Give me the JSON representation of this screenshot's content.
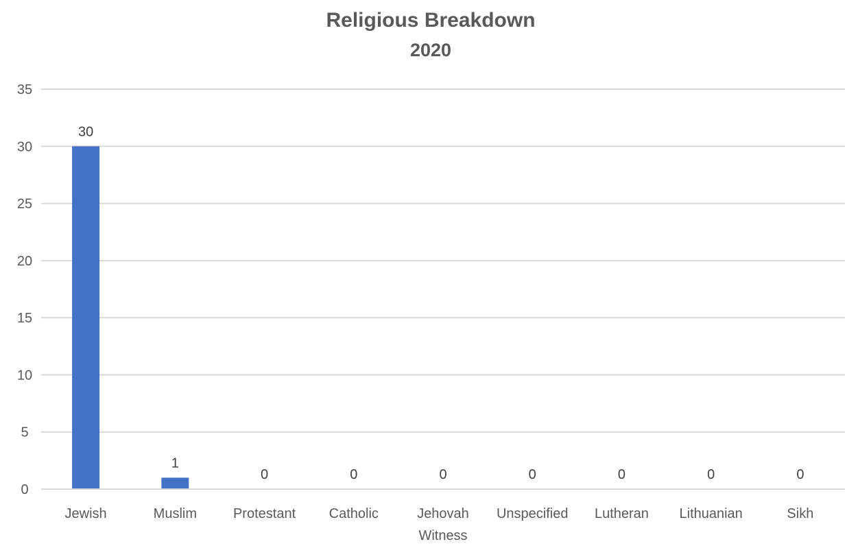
{
  "chart_data": {
    "type": "bar",
    "title": "Religious Breakdown",
    "subtitle": "2020",
    "xlabel": "",
    "ylabel": "",
    "categories": [
      "Jewish",
      "Muslim",
      "Protestant",
      "Catholic",
      "Jehovah Witness",
      "Unspecified",
      "Lutheran",
      "Lithuanian",
      "Sikh"
    ],
    "values": [
      30,
      1,
      0,
      0,
      0,
      0,
      0,
      0,
      0
    ],
    "data_labels": [
      "30",
      "1",
      "0",
      "0",
      "0",
      "0",
      "0",
      "0",
      "0"
    ],
    "ylim": [
      0,
      35
    ],
    "yticks": [
      0,
      5,
      10,
      15,
      20,
      25,
      30,
      35
    ],
    "grid": true,
    "legend": "none",
    "bar_color": "#4472c4"
  }
}
